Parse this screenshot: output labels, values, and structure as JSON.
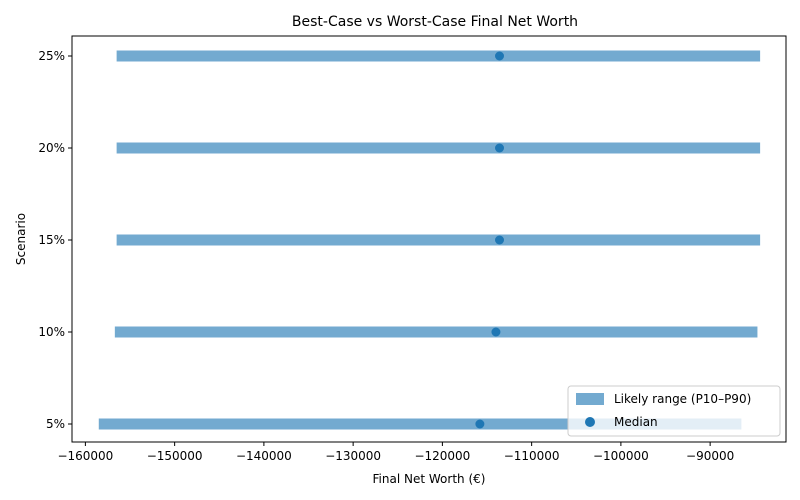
{
  "chart_data": {
    "type": "range",
    "title": "Best-Case vs Worst-Case Final Net Worth",
    "xlabel": "Final Net Worth (€)",
    "ylabel": "Scenario",
    "categories": [
      "5%",
      "10%",
      "15%",
      "20%",
      "25%"
    ],
    "p10": [
      -158500,
      -156700,
      -156500,
      -156500,
      -156500
    ],
    "p90": [
      -86500,
      -84700,
      -84400,
      -84400,
      -84400
    ],
    "median": [
      -115800,
      -114000,
      -113600,
      -113600,
      -113600
    ],
    "xlim": [
      -161500,
      -81500
    ],
    "xticks": [
      -160000,
      -150000,
      -140000,
      -130000,
      -120000,
      -110000,
      -100000,
      -90000
    ],
    "xtick_labels": [
      "−160000",
      "−150000",
      "−140000",
      "−130000",
      "−120000",
      "−110000",
      "−100000",
      "−90000"
    ],
    "grid": false,
    "legend": {
      "position": "lower-right",
      "entries": [
        {
          "label": "Likely range (P10–P90)",
          "color": "#73aad0"
        },
        {
          "label": "Median",
          "color": "#1f77b4"
        }
      ]
    },
    "colors": {
      "range": "#73aad0",
      "median": "#1f77b4"
    }
  }
}
